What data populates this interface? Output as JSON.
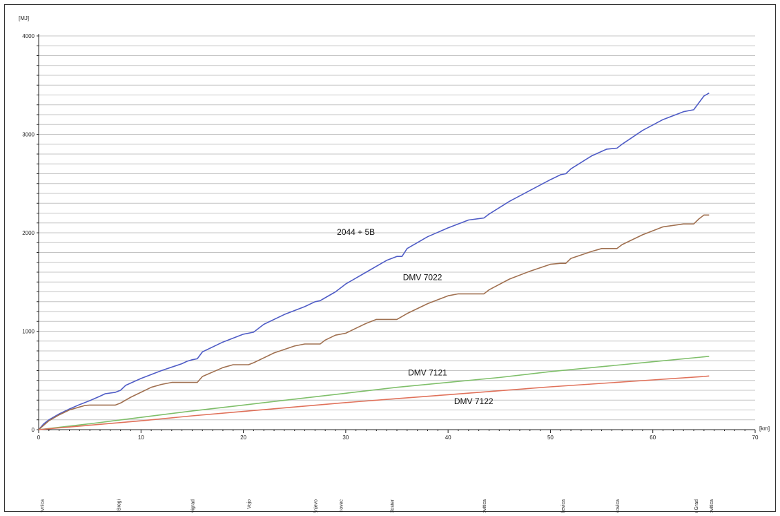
{
  "chart_data": {
    "type": "line",
    "ylabel": "[MJ]",
    "xlabel": "[km]",
    "xlim": [
      0,
      70
    ],
    "ylim": [
      0,
      4000
    ],
    "x_ticks": [
      0,
      10,
      20,
      30,
      40,
      50,
      60,
      70
    ],
    "y_ticks": [
      0,
      1000,
      2000,
      3000,
      4000
    ],
    "grid": true,
    "legend": "inline labels",
    "series": [
      {
        "name": "2044 + 5B",
        "color": "#4f5cc6",
        "points": [
          [
            0,
            0
          ],
          [
            0.5,
            60
          ],
          [
            1,
            100
          ],
          [
            2,
            160
          ],
          [
            3,
            210
          ],
          [
            4,
            255
          ],
          [
            5,
            295
          ],
          [
            6,
            340
          ],
          [
            6.5,
            365
          ],
          [
            7.5,
            380
          ],
          [
            8,
            400
          ],
          [
            8.5,
            450
          ],
          [
            10,
            520
          ],
          [
            12,
            600
          ],
          [
            14,
            670
          ],
          [
            14.5,
            695
          ],
          [
            15,
            710
          ],
          [
            15.5,
            720
          ],
          [
            16,
            790
          ],
          [
            18,
            890
          ],
          [
            20,
            970
          ],
          [
            20.5,
            980
          ],
          [
            21,
            990
          ],
          [
            22,
            1070
          ],
          [
            24,
            1170
          ],
          [
            26,
            1250
          ],
          [
            27,
            1300
          ],
          [
            27.5,
            1310
          ],
          [
            28,
            1340
          ],
          [
            29,
            1400
          ],
          [
            30,
            1480
          ],
          [
            32,
            1600
          ],
          [
            34,
            1720
          ],
          [
            35,
            1760
          ],
          [
            35.5,
            1760
          ],
          [
            36,
            1840
          ],
          [
            38,
            1960
          ],
          [
            40,
            2050
          ],
          [
            42,
            2130
          ],
          [
            43.5,
            2150
          ],
          [
            44,
            2190
          ],
          [
            46,
            2320
          ],
          [
            48,
            2430
          ],
          [
            50,
            2540
          ],
          [
            51,
            2590
          ],
          [
            51.5,
            2600
          ],
          [
            52,
            2650
          ],
          [
            54,
            2780
          ],
          [
            55.5,
            2850
          ],
          [
            56.5,
            2860
          ],
          [
            57,
            2900
          ],
          [
            59,
            3040
          ],
          [
            61,
            3150
          ],
          [
            63,
            3230
          ],
          [
            64,
            3250
          ],
          [
            64.5,
            3320
          ],
          [
            65,
            3390
          ],
          [
            65.5,
            3420
          ]
        ]
      },
      {
        "name": "DMV 7022",
        "color": "#a07050",
        "points": [
          [
            0,
            0
          ],
          [
            1,
            90
          ],
          [
            2,
            150
          ],
          [
            3,
            200
          ],
          [
            4,
            230
          ],
          [
            4.5,
            245
          ],
          [
            5,
            250
          ],
          [
            7.5,
            250
          ],
          [
            8,
            270
          ],
          [
            9,
            330
          ],
          [
            10,
            380
          ],
          [
            11,
            430
          ],
          [
            12,
            460
          ],
          [
            13,
            480
          ],
          [
            15,
            480
          ],
          [
            15.5,
            480
          ],
          [
            16,
            540
          ],
          [
            18,
            630
          ],
          [
            19,
            660
          ],
          [
            20.5,
            660
          ],
          [
            21,
            680
          ],
          [
            23,
            780
          ],
          [
            25,
            850
          ],
          [
            26,
            870
          ],
          [
            27.5,
            870
          ],
          [
            28,
            910
          ],
          [
            29,
            960
          ],
          [
            30,
            980
          ],
          [
            31,
            1030
          ],
          [
            32,
            1080
          ],
          [
            33,
            1120
          ],
          [
            35,
            1120
          ],
          [
            36,
            1180
          ],
          [
            38,
            1280
          ],
          [
            40,
            1360
          ],
          [
            41,
            1380
          ],
          [
            43.5,
            1380
          ],
          [
            44,
            1420
          ],
          [
            46,
            1530
          ],
          [
            48,
            1610
          ],
          [
            50,
            1680
          ],
          [
            51,
            1690
          ],
          [
            51.5,
            1690
          ],
          [
            52,
            1740
          ],
          [
            54,
            1810
          ],
          [
            55,
            1840
          ],
          [
            56.5,
            1840
          ],
          [
            57,
            1880
          ],
          [
            59,
            1980
          ],
          [
            61,
            2060
          ],
          [
            63,
            2090
          ],
          [
            64,
            2090
          ],
          [
            64.5,
            2140
          ],
          [
            65,
            2180
          ],
          [
            65.5,
            2180
          ]
        ]
      },
      {
        "name": "DMV 7121",
        "color": "#7fbf6a",
        "points": [
          [
            0,
            0
          ],
          [
            5,
            60
          ],
          [
            10,
            125
          ],
          [
            15,
            190
          ],
          [
            20,
            250
          ],
          [
            25,
            310
          ],
          [
            30,
            370
          ],
          [
            35,
            430
          ],
          [
            40,
            480
          ],
          [
            45,
            530
          ],
          [
            50,
            590
          ],
          [
            55,
            640
          ],
          [
            60,
            690
          ],
          [
            65,
            740
          ],
          [
            65.5,
            745
          ]
        ]
      },
      {
        "name": "DMV 7122",
        "color": "#e0715a",
        "points": [
          [
            0,
            0
          ],
          [
            5,
            45
          ],
          [
            10,
            90
          ],
          [
            15,
            140
          ],
          [
            20,
            185
          ],
          [
            25,
            230
          ],
          [
            30,
            275
          ],
          [
            35,
            315
          ],
          [
            40,
            355
          ],
          [
            45,
            395
          ],
          [
            50,
            435
          ],
          [
            55,
            470
          ],
          [
            60,
            505
          ],
          [
            65,
            540
          ],
          [
            65.5,
            545
          ]
        ]
      }
    ],
    "series_label_text": [
      "2044 + 5B",
      "DMV 7022",
      "DMV 7121",
      "DMV 7122"
    ],
    "stations": [
      {
        "name": "Koprivnica",
        "km": 0.3
      },
      {
        "name": "Bregi",
        "km": 7.8
      },
      {
        "name": "Novigrad",
        "km": 15
      },
      {
        "name": "Vojo",
        "km": 20.5
      },
      {
        "name": "Sušnjevo",
        "km": 27
      },
      {
        "name": "Kalinovec",
        "km": 29.5
      },
      {
        "name": "Kloster",
        "km": 34.5
      },
      {
        "name": "Virovitica",
        "km": 43.5
      },
      {
        "name": "Vukosavljevica",
        "km": 51.2
      },
      {
        "name": "Špišić Bukovica",
        "km": 56.5
      },
      {
        "name": "Virovitica Grad",
        "km": 64.2
      },
      {
        "name": "Virovitica",
        "km": 65.7
      }
    ]
  }
}
